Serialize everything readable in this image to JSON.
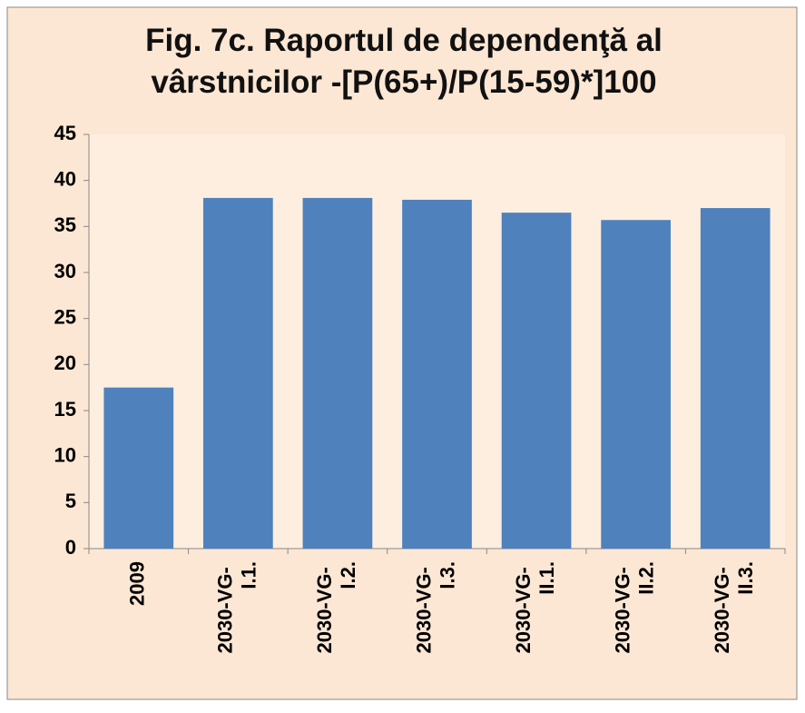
{
  "chart_data": {
    "type": "bar",
    "title": "Fig. 7c. Raportul de dependenţă al vârstnicilor -[P(65+)/P(15-59)*]100",
    "categories": [
      "2009",
      "2030-VG- I.1.",
      "2030-VG- I.2.",
      "2030-VG- I.3.",
      "2030-VG- II.1.",
      "2030-VG- II.2.",
      "2030-VG- II.3."
    ],
    "values": [
      17.5,
      38.1,
      38.1,
      37.9,
      36.5,
      35.7,
      37.0
    ],
    "color": "#4f81bd",
    "ylim": [
      0,
      45
    ],
    "yticks": [
      0,
      5,
      10,
      15,
      20,
      25,
      30,
      35,
      40,
      45
    ],
    "grid": false
  }
}
